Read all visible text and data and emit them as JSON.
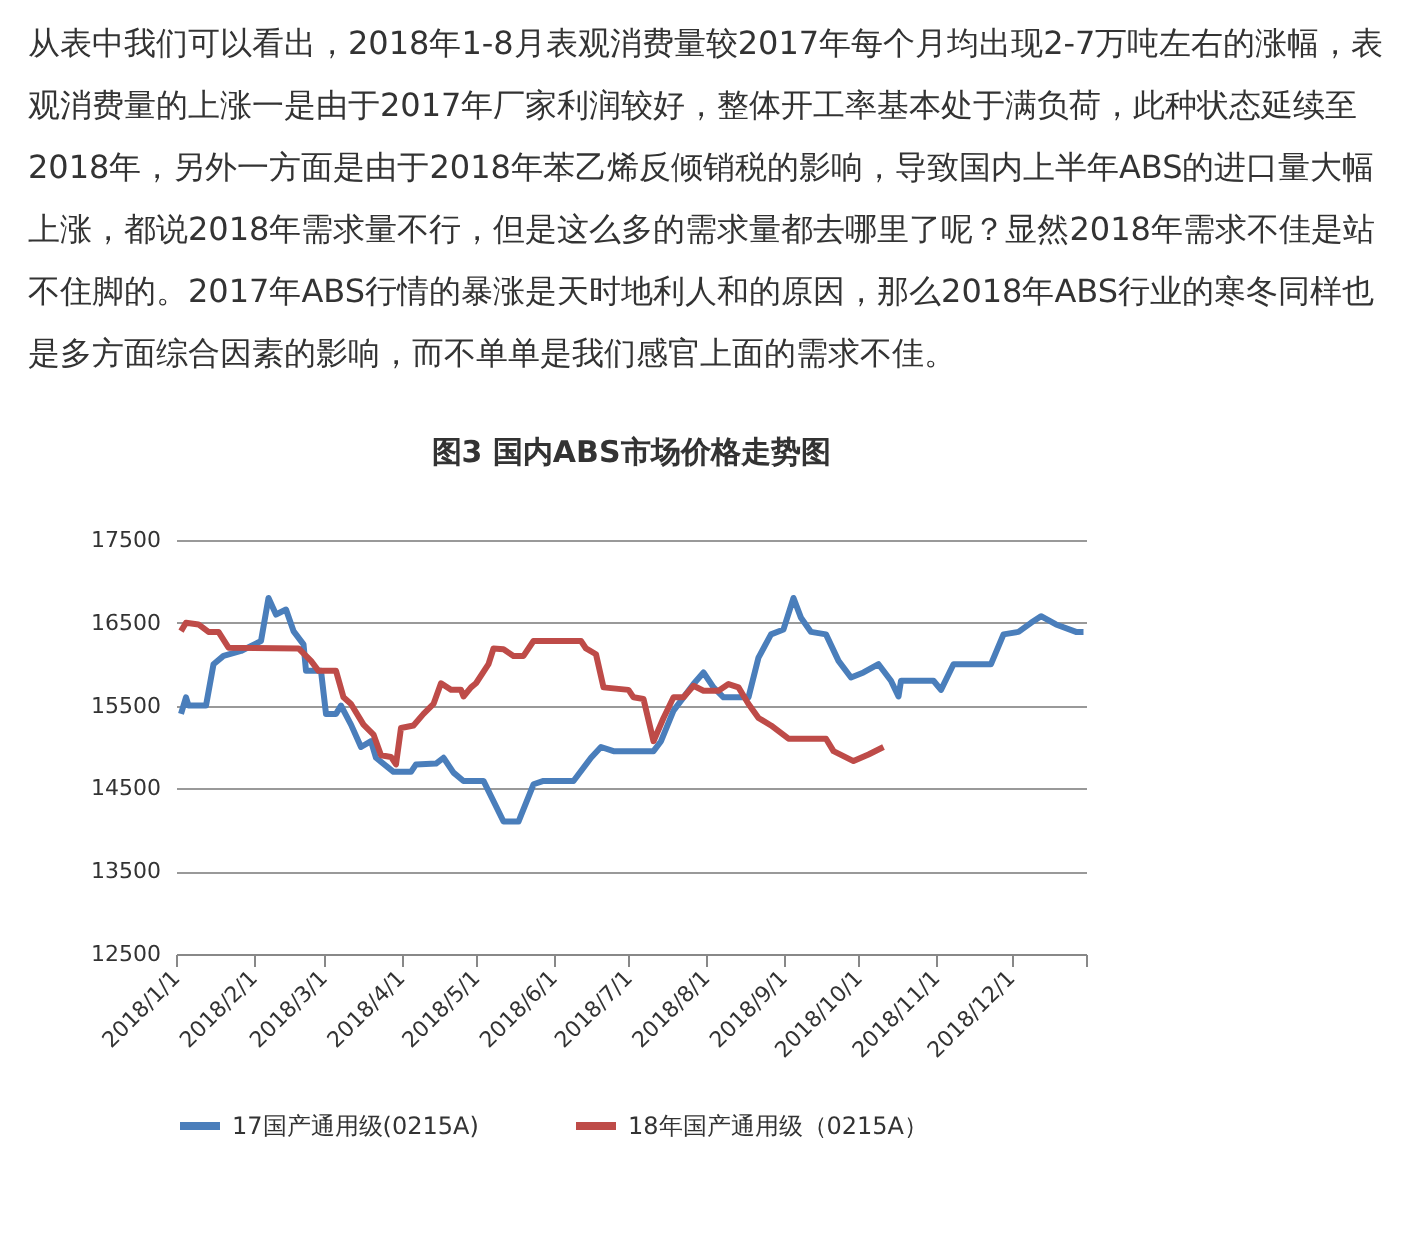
{
  "chart_data": {
    "type": "line",
    "title": "图3 国内ABS市场价格走势图",
    "annotations": [
      "从表中我们可以看出，2018年1-8月表观消费量较2017年每个月均出现2-7万吨左右的涨幅，表观消费量的上涨一是由于2017年厂家利润较好，整体开工率基本处于满负荷，此种状态延续至2018年，另外一方面是由于2018年苯乙烯反倾销税的影响，导致国内上半年ABS的进口量大幅上涨，都说2018年需求量不行，但是这么多的需求量都去哪里了呢？显然2018年需求不佳是站不住脚的。2017年ABS行情的暴涨是天时地利人和的原因，那么2018年ABS行业的寒冬同样也是多方面综合因素的影响，而不单单是我们感官上面的需求不佳。"
    ],
    "series": [
      {
        "name": "17国产通用级(0215A)",
        "color": "#4a7ebb",
        "x": [
          "2018-01-03",
          "2018-01-05",
          "2018-01-06",
          "2018-01-13",
          "2018-01-16",
          "2018-01-20",
          "2018-01-27",
          "2018-02-04",
          "2018-02-07",
          "2018-02-10",
          "2018-02-14",
          "2018-02-17",
          "2018-02-21",
          "2018-02-22",
          "2018-02-28",
          "2018-03-02",
          "2018-03-06",
          "2018-03-08",
          "2018-03-12",
          "2018-03-16",
          "2018-03-20",
          "2018-03-22",
          "2018-03-29",
          "2018-04-05",
          "2018-04-07",
          "2018-04-15",
          "2018-04-18",
          "2018-04-22",
          "2018-04-26",
          "2018-05-04",
          "2018-05-12",
          "2018-05-18",
          "2018-05-24",
          "2018-05-28",
          "2018-06-09",
          "2018-06-16",
          "2018-06-20",
          "2018-06-25",
          "2018-07-11",
          "2018-07-14",
          "2018-07-19",
          "2018-07-27",
          "2018-07-31",
          "2018-08-04",
          "2018-08-08",
          "2018-08-18",
          "2018-08-22",
          "2018-08-27",
          "2018-09-01",
          "2018-09-05",
          "2018-09-08",
          "2018-09-12",
          "2018-09-18",
          "2018-09-23",
          "2018-09-28",
          "2018-10-03",
          "2018-10-09",
          "2018-10-14",
          "2018-10-17",
          "2018-10-18",
          "2018-10-31",
          "2018-11-03",
          "2018-11-08",
          "2018-11-23",
          "2018-11-28",
          "2018-12-04",
          "2018-12-09",
          "2018-12-13",
          "2018-12-19",
          "2018-12-27",
          "2018-12-30"
        ],
        "values": [
          15400,
          15600,
          15500,
          15500,
          16000,
          16100,
          16160,
          16280,
          16800,
          16600,
          16660,
          16400,
          16240,
          15920,
          15920,
          15400,
          15400,
          15500,
          15270,
          15000,
          15070,
          14870,
          14700,
          14700,
          14790,
          14800,
          14870,
          14690,
          14590,
          14590,
          14100,
          14100,
          14550,
          14590,
          14590,
          14870,
          15000,
          14950,
          14950,
          15070,
          15440,
          15760,
          15900,
          15720,
          15600,
          15600,
          16080,
          16360,
          16420,
          16800,
          16560,
          16390,
          16360,
          16040,
          15840,
          15900,
          16000,
          15800,
          15610,
          15800,
          15800,
          15690,
          16000,
          16000,
          16360,
          16390,
          16500,
          16580,
          16480,
          16390,
          16390
        ]
      },
      {
        "name": "18年国产通用级（0215A）",
        "color": "#be4b48",
        "x": [
          "2018-01-03",
          "2018-01-05",
          "2018-01-10",
          "2018-01-14",
          "2018-01-18",
          "2018-01-22",
          "2018-02-19",
          "2018-02-24",
          "2018-02-27",
          "2018-03-06",
          "2018-03-09",
          "2018-03-12",
          "2018-03-17",
          "2018-03-21",
          "2018-03-24",
          "2018-03-28",
          "2018-03-30",
          "2018-04-01",
          "2018-04-06",
          "2018-04-10",
          "2018-04-14",
          "2018-04-17",
          "2018-04-21",
          "2018-04-25",
          "2018-04-26",
          "2018-04-29",
          "2018-05-01",
          "2018-05-06",
          "2018-05-08",
          "2018-05-12",
          "2018-05-16",
          "2018-05-20",
          "2018-05-24",
          "2018-06-12",
          "2018-06-14",
          "2018-06-18",
          "2018-06-21",
          "2018-07-01",
          "2018-07-03",
          "2018-07-07",
          "2018-07-11",
          "2018-07-15",
          "2018-07-19",
          "2018-07-23",
          "2018-07-27",
          "2018-07-31",
          "2018-08-06",
          "2018-08-10",
          "2018-08-14",
          "2018-08-18",
          "2018-08-22",
          "2018-08-27",
          "2018-09-03",
          "2018-09-18",
          "2018-09-21",
          "2018-09-29",
          "2018-10-05",
          "2018-10-11"
        ],
        "values": [
          16400,
          16500,
          16480,
          16390,
          16390,
          16200,
          16190,
          16040,
          15920,
          15920,
          15600,
          15520,
          15270,
          15150,
          14900,
          14880,
          14790,
          15230,
          15260,
          15400,
          15520,
          15770,
          15690,
          15690,
          15610,
          15720,
          15770,
          16000,
          16190,
          16180,
          16100,
          16100,
          16280,
          16280,
          16190,
          16120,
          15720,
          15690,
          15600,
          15580,
          15070,
          15350,
          15600,
          15600,
          15740,
          15680,
          15680,
          15760,
          15720,
          15520,
          15350,
          15260,
          15100,
          15100,
          14950,
          14830,
          14910,
          15000
        ]
      }
    ],
    "xlim": [
      "2018-01-01",
      "2018-12-31"
    ],
    "xticks": [
      {
        "value": "2018-01-01",
        "label": "2018/1/1"
      },
      {
        "value": "2018-02-01",
        "label": "2018/2/1"
      },
      {
        "value": "2018-03-01",
        "label": "2018/3/1"
      },
      {
        "value": "2018-04-01",
        "label": "2018/4/1"
      },
      {
        "value": "2018-05-01",
        "label": "2018/5/1"
      },
      {
        "value": "2018-06-01",
        "label": "2018/6/1"
      },
      {
        "value": "2018-07-01",
        "label": "2018/7/1"
      },
      {
        "value": "2018-08-01",
        "label": "2018/8/1"
      },
      {
        "value": "2018-09-01",
        "label": "2018/9/1"
      },
      {
        "value": "2018-10-01",
        "label": "2018/10/1"
      },
      {
        "value": "2018-11-01",
        "label": "2018/11/1"
      },
      {
        "value": "2018-12-01",
        "label": "2018/12/1"
      },
      {
        "value": "2018-12-31",
        "label": null
      }
    ],
    "ylim": [
      12500,
      17500
    ],
    "yticks": [
      12500,
      13500,
      14500,
      15500,
      16500,
      17500
    ],
    "grid": "y",
    "legend": "bottom"
  }
}
